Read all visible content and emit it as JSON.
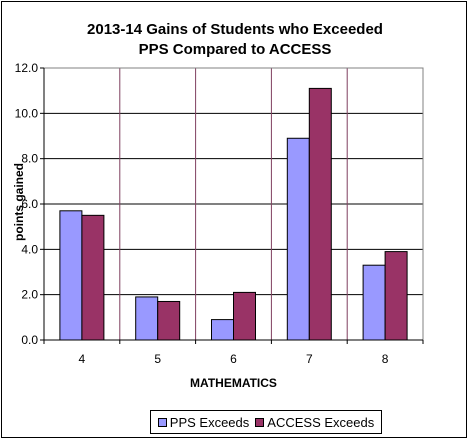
{
  "chart_data": {
    "type": "bar",
    "title_lines": [
      "2013-14 Gains of Students who Exceeded",
      "PPS Compared to ACCESS"
    ],
    "xlabel": "MATHEMATICS",
    "ylabel": "points gained",
    "categories": [
      "4",
      "5",
      "6",
      "7",
      "8"
    ],
    "yticks": [
      "0.0",
      "2.0",
      "4.0",
      "6.0",
      "8.0",
      "10.0",
      "12.0"
    ],
    "ylim": [
      0,
      12
    ],
    "grid": "horizontal and vertical",
    "legend_position": "bottom",
    "series": [
      {
        "name": "PPS Exceeds",
        "color": "#9999FF",
        "values": [
          5.7,
          1.9,
          0.9,
          8.9,
          3.3
        ]
      },
      {
        "name": "ACCESS Exceeds",
        "color": "#993366",
        "values": [
          5.5,
          1.7,
          2.1,
          11.1,
          3.9
        ]
      }
    ]
  }
}
